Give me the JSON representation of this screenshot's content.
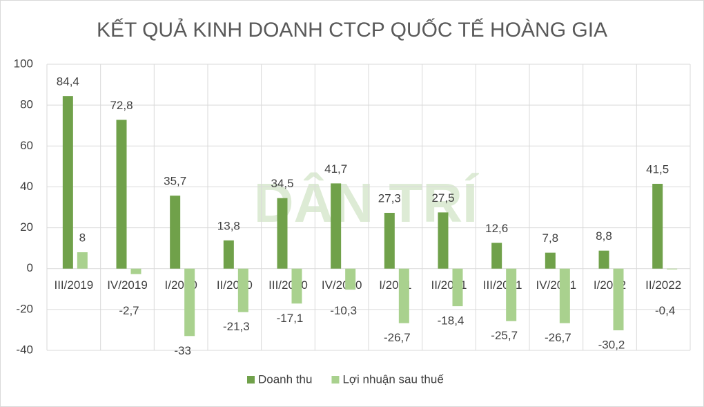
{
  "chart_data": {
    "type": "bar",
    "title": "KẾT QUẢ KINH DOANH CTCP QUỐC TẾ HOÀNG GIA",
    "watermark": "DÂN TRÍ",
    "categories": [
      "III/2019",
      "IV/2019",
      "I/2020",
      "II/2020",
      "III/2020",
      "IV/2020",
      "I/2021",
      "II/2021",
      "III/2021",
      "IV/2021",
      "I/2022",
      "II/2022"
    ],
    "series": [
      {
        "name": "Doanh thu",
        "color": "#70a14a",
        "values": [
          84.4,
          72.8,
          35.7,
          13.8,
          34.5,
          41.7,
          27.3,
          27.5,
          12.6,
          7.8,
          8.8,
          41.5
        ],
        "value_labels": [
          "84,4",
          "72,8",
          "35,7",
          "13,8",
          "34,5",
          "41,7",
          "27,3",
          "27,5",
          "12,6",
          "7,8",
          "8,8",
          "41,5"
        ]
      },
      {
        "name": "Lợi nhuận sau thuế",
        "color": "#a9d18e",
        "values": [
          8,
          -2.7,
          -33,
          -21.3,
          -17.1,
          -10.3,
          -26.7,
          -18.4,
          -25.7,
          -26.7,
          -30.2,
          -0.4
        ],
        "value_labels": [
          "8",
          "-2,7",
          "-33",
          "-21,3",
          "-17,1",
          "-10,3",
          "-26,7",
          "-18,4",
          "-25,7",
          "-26,7",
          "-30,2",
          "-0,4"
        ]
      }
    ],
    "ylim": [
      -40,
      100
    ],
    "yticks": [
      -40,
      -20,
      0,
      20,
      40,
      60,
      80,
      100
    ],
    "grid": true,
    "legend": "bottom"
  }
}
